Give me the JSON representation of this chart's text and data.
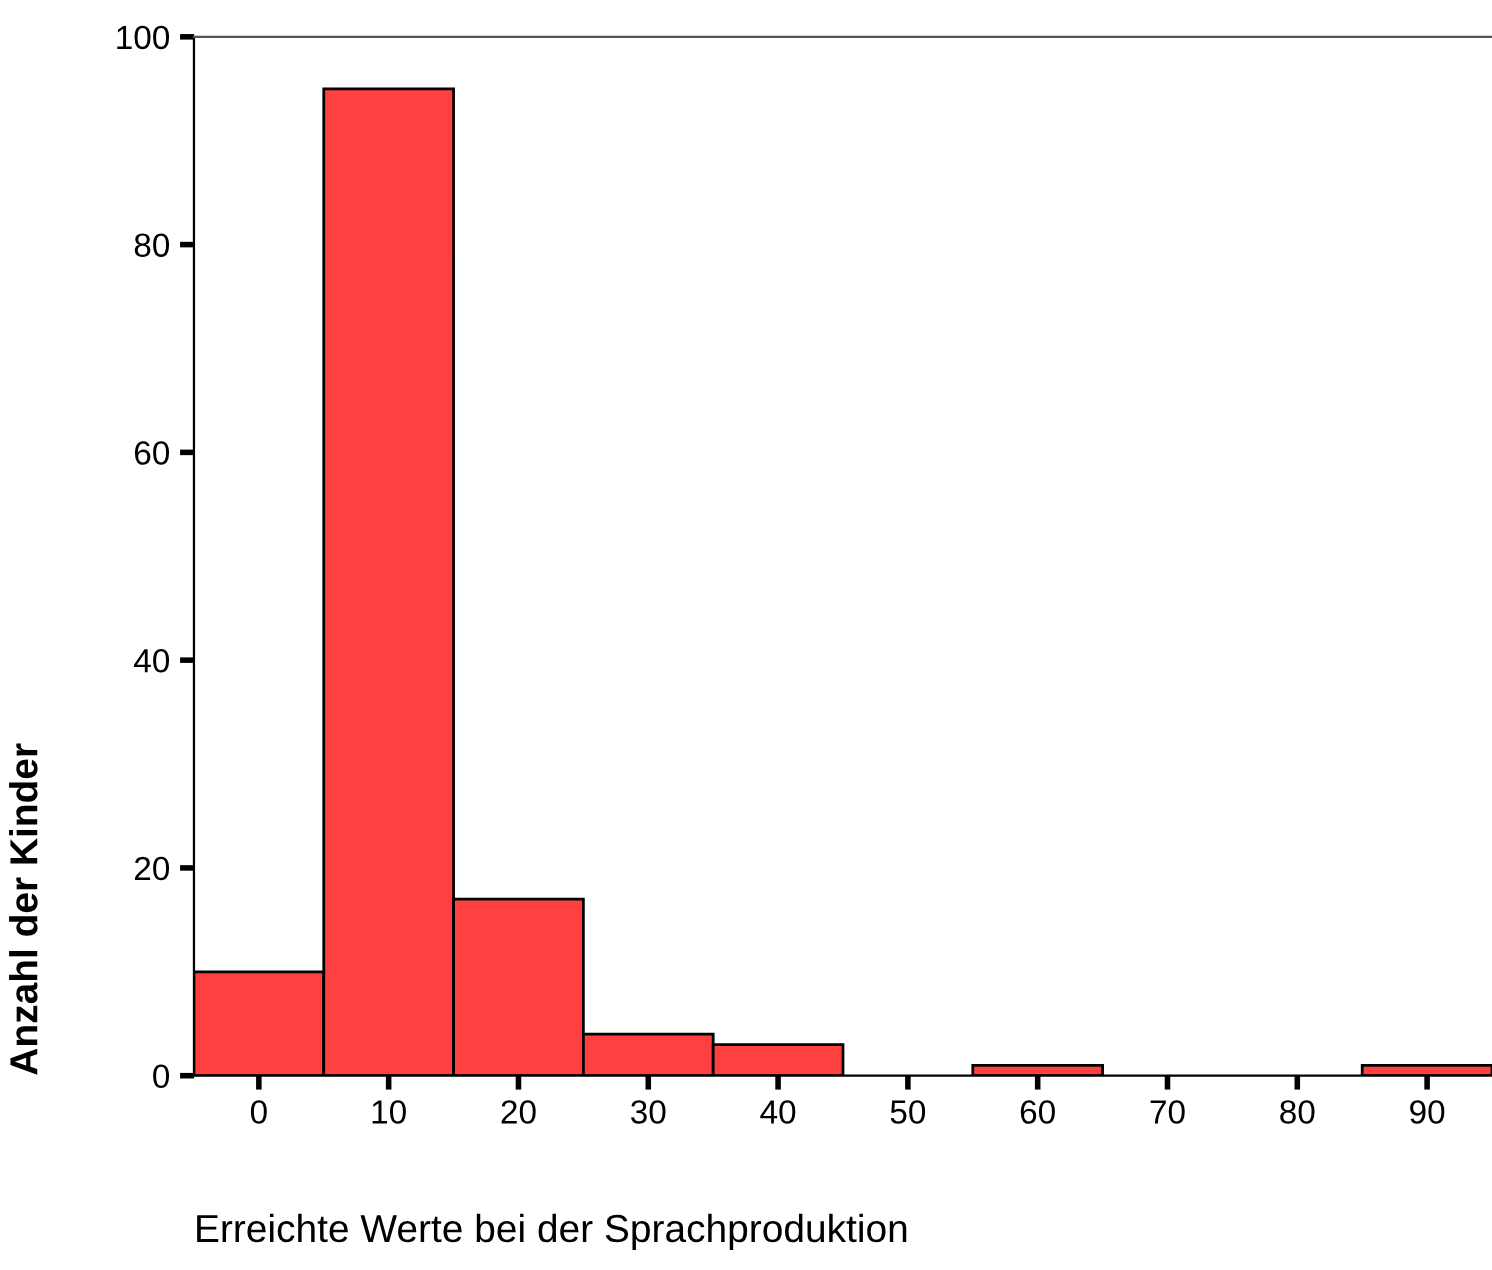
{
  "chart_data": {
    "type": "histogram",
    "xlabel": "Erreichte Werte bei der Sprachproduktion",
    "ylabel": "Anzahl der Kinder",
    "bins": [
      -5,
      5,
      15,
      25,
      35,
      45,
      55,
      65,
      75,
      85,
      95
    ],
    "values": [
      10,
      95,
      17,
      4,
      3,
      0,
      1,
      0,
      0,
      1
    ],
    "color": "#ff4040",
    "xlim": [
      -5,
      95
    ],
    "xticks": [
      0,
      10,
      20,
      30,
      40,
      50,
      60,
      70,
      80,
      90
    ],
    "ylim": [
      0,
      100
    ],
    "yticks": [
      0,
      20,
      40,
      60,
      80,
      100
    ],
    "grid": false
  }
}
